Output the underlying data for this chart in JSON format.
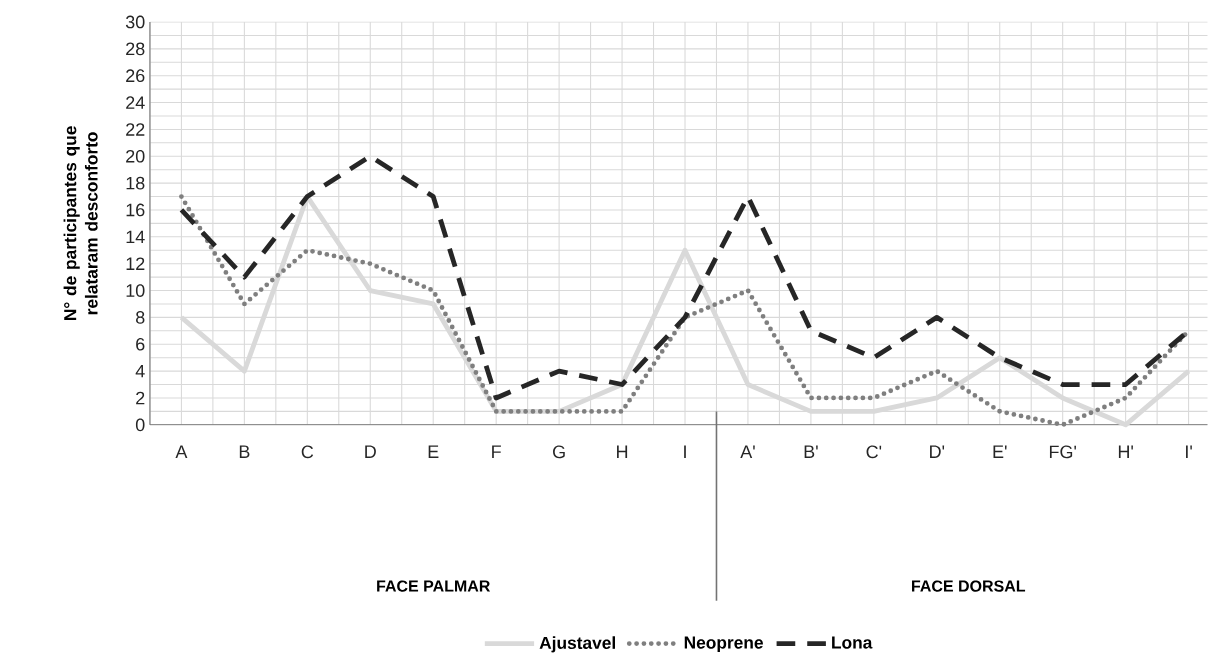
{
  "chart_data": {
    "type": "line",
    "ylabel": "N° de participantes que relataram desconforto",
    "categories": [
      "A",
      "B",
      "C",
      "D",
      "E",
      "F",
      "G",
      "H",
      "I",
      "A'",
      "B'",
      "C'",
      "D'",
      "E'",
      "FG'",
      "H'",
      "I'"
    ],
    "series": [
      {
        "name": "Ajustavel",
        "color": "#d9d9d9",
        "line_style": "solid",
        "values": [
          8,
          4,
          17,
          10,
          9,
          1,
          1,
          3,
          13,
          3,
          1,
          1,
          2,
          5,
          2,
          0,
          4
        ]
      },
      {
        "name": "Neoprene",
        "color": "#7f7f7f",
        "line_style": "dotted",
        "values": [
          17,
          9,
          13,
          12,
          10,
          1,
          1,
          1,
          8,
          10,
          2,
          2,
          4,
          1,
          0,
          2,
          7
        ]
      },
      {
        "name": "Lona",
        "color": "#262626",
        "line_style": "dashed",
        "values": [
          16,
          11,
          17,
          20,
          17,
          2,
          4,
          3,
          8,
          17,
          7,
          5,
          8,
          5,
          3,
          3,
          7
        ]
      }
    ],
    "ylim": [
      0,
      30
    ],
    "yticks": [
      0,
      2,
      4,
      6,
      8,
      10,
      12,
      14,
      16,
      18,
      20,
      22,
      24,
      26,
      28,
      30
    ],
    "grid": true,
    "legend": "bottom",
    "annotations": [
      "FACE PALMAR",
      "FACE DORSAL"
    ]
  }
}
